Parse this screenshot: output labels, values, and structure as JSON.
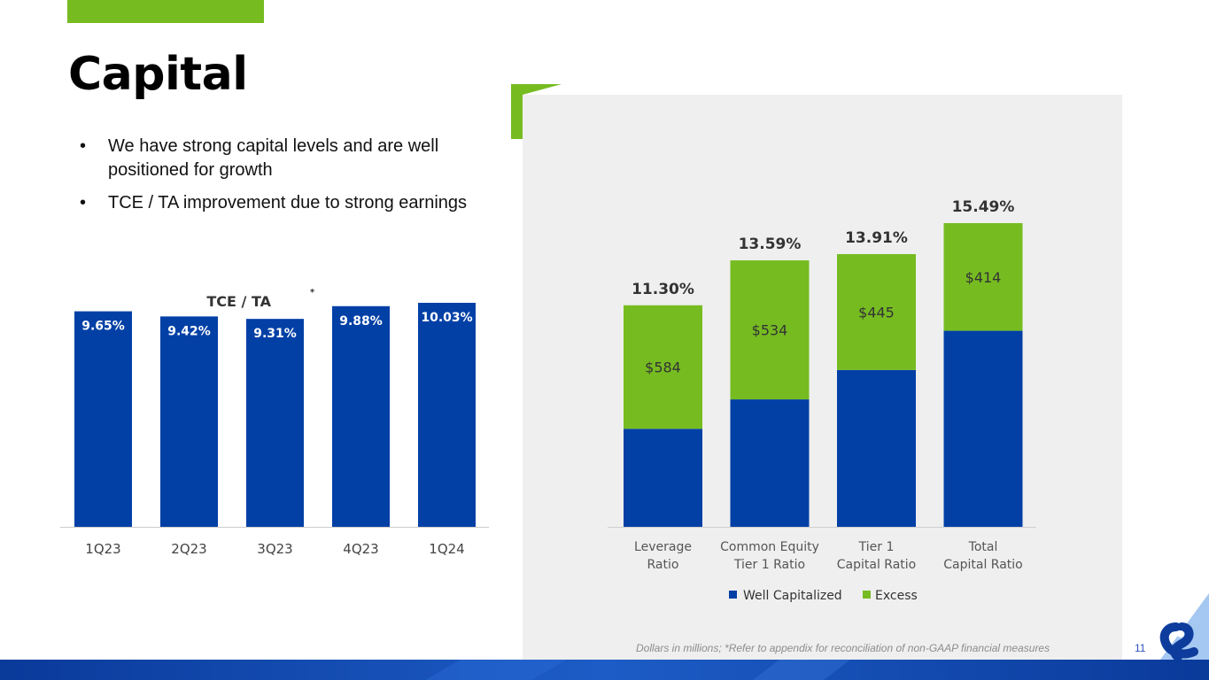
{
  "title": "Capital",
  "bullets": [
    "We have strong capital levels and are well positioned for growth",
    "TCE / TA improvement due to strong earnings"
  ],
  "footnote": "Dollars in millions; *Refer to appendix for reconciliation of non-GAAP financial measures",
  "page_number": "11",
  "colors": {
    "blue": "#0340a6",
    "green": "#76bc21"
  },
  "logo": {
    "icon": "ampersand-icon"
  },
  "chart_data": [
    {
      "type": "bar",
      "title": "TCE / TA",
      "title_marker": "*",
      "categories": [
        "1Q23",
        "2Q23",
        "3Q23",
        "4Q23",
        "1Q24"
      ],
      "values": [
        9.65,
        9.42,
        9.31,
        9.88,
        10.03
      ],
      "labels": [
        "9.65%",
        "9.42%",
        "9.31%",
        "9.88%",
        "10.03%"
      ],
      "ylim": [
        0,
        10.03
      ],
      "xlabel": "",
      "ylabel": ""
    },
    {
      "type": "bar",
      "stacked": true,
      "categories": [
        [
          "Leverage",
          "Ratio"
        ],
        [
          "Common Equity",
          "Tier 1 Ratio"
        ],
        [
          "Tier 1",
          "Capital Ratio"
        ],
        [
          "Total",
          "Capital Ratio"
        ]
      ],
      "totals": [
        11.3,
        13.59,
        13.91,
        15.49
      ],
      "total_labels": [
        "11.30%",
        "13.59%",
        "13.91%",
        "15.49%"
      ],
      "series": [
        {
          "name": "Well Capitalized",
          "values": [
            5.0,
            6.5,
            8.0,
            10.0
          ]
        },
        {
          "name": "Excess",
          "values": [
            6.3,
            7.09,
            5.91,
            5.49
          ],
          "labels": [
            "$584",
            "$534",
            "$445",
            "$414"
          ]
        }
      ],
      "ylim": [
        0,
        15.49
      ],
      "legend": "bottom-center"
    }
  ]
}
